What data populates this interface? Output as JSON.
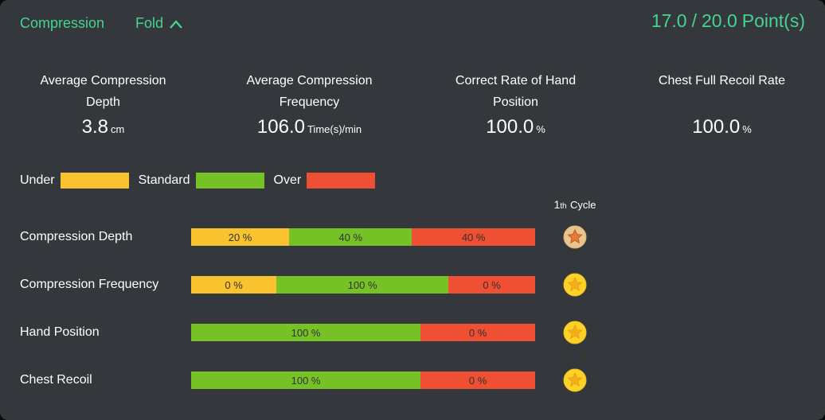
{
  "panel": {
    "title": "Compression",
    "fold_label": "Fold",
    "score": {
      "value": "17.0",
      "separator": "/",
      "total": "20.0",
      "unit": "Point(s)"
    }
  },
  "stats": [
    {
      "label": "Average Compression Depth",
      "value": "3.8",
      "unit": "cm"
    },
    {
      "label": "Average Compression Frequency",
      "value": "106.0",
      "unit": "Time(s)/min"
    },
    {
      "label": "Correct Rate of Hand Position",
      "value": "100.0",
      "unit": "%"
    },
    {
      "label": "Chest Full Recoil Rate",
      "value": "100.0",
      "unit": "%"
    }
  ],
  "legend": [
    {
      "label": "Under",
      "type": "under"
    },
    {
      "label": "Standard",
      "type": "standard"
    },
    {
      "label": "Over",
      "type": "over"
    }
  ],
  "cycle_header": {
    "number": "1",
    "suffix": "th",
    "word": "Cycle"
  },
  "rows": [
    {
      "label": "Compression Depth",
      "segments": [
        {
          "text": "20 %",
          "type": "under",
          "width_pct": 28.5
        },
        {
          "text": "40 %",
          "type": "standard",
          "width_pct": 35.7
        },
        {
          "text": "40 %",
          "type": "over",
          "width_pct": 35.8
        }
      ],
      "medal": "bronze"
    },
    {
      "label": "Compression Frequency",
      "segments": [
        {
          "text": "0 %",
          "type": "under",
          "width_pct": 24.8
        },
        {
          "text": "100 %",
          "type": "standard",
          "width_pct": 50.0
        },
        {
          "text": "0 %",
          "type": "over",
          "width_pct": 25.2
        }
      ],
      "medal": "gold"
    },
    {
      "label": "Hand Position",
      "segments": [
        {
          "text": "100 %",
          "type": "standard",
          "width_pct": 66.7
        },
        {
          "text": "0 %",
          "type": "over",
          "width_pct": 33.3
        }
      ],
      "medal": "gold"
    },
    {
      "label": "Chest Recoil",
      "segments": [
        {
          "text": "100 %",
          "type": "standard",
          "width_pct": 66.7
        },
        {
          "text": "0 %",
          "type": "over",
          "width_pct": 33.3
        }
      ],
      "medal": "gold"
    }
  ],
  "colors": {
    "panel_bg": "#34373b",
    "accent_green": "#45d491",
    "under": "#f8c32f",
    "standard": "#76c226",
    "over": "#ef4f32",
    "segment_text": "#303132"
  },
  "medal_styles": {
    "bronze": {
      "coin": "#eac48e",
      "rim": "#dcb277",
      "star": "#e87a36",
      "star_rim": "#b05f2a"
    },
    "gold": {
      "coin": "#fcd228",
      "rim": "#f2bd20",
      "star": "#f2ae1c",
      "star_rim": "#eca513"
    }
  },
  "chart_data": {
    "type": "bar",
    "subtype": "stacked-horizontal",
    "title": "Compression cycle performance distribution",
    "categories": [
      "Compression Depth",
      "Compression Frequency",
      "Hand Position",
      "Chest Recoil"
    ],
    "series": [
      {
        "name": "Under",
        "values": [
          20,
          0,
          null,
          null
        ]
      },
      {
        "name": "Standard",
        "values": [
          40,
          100,
          100,
          100
        ]
      },
      {
        "name": "Over",
        "values": [
          40,
          0,
          0,
          0
        ]
      }
    ],
    "unit": "%",
    "legend_position": "top-left"
  }
}
